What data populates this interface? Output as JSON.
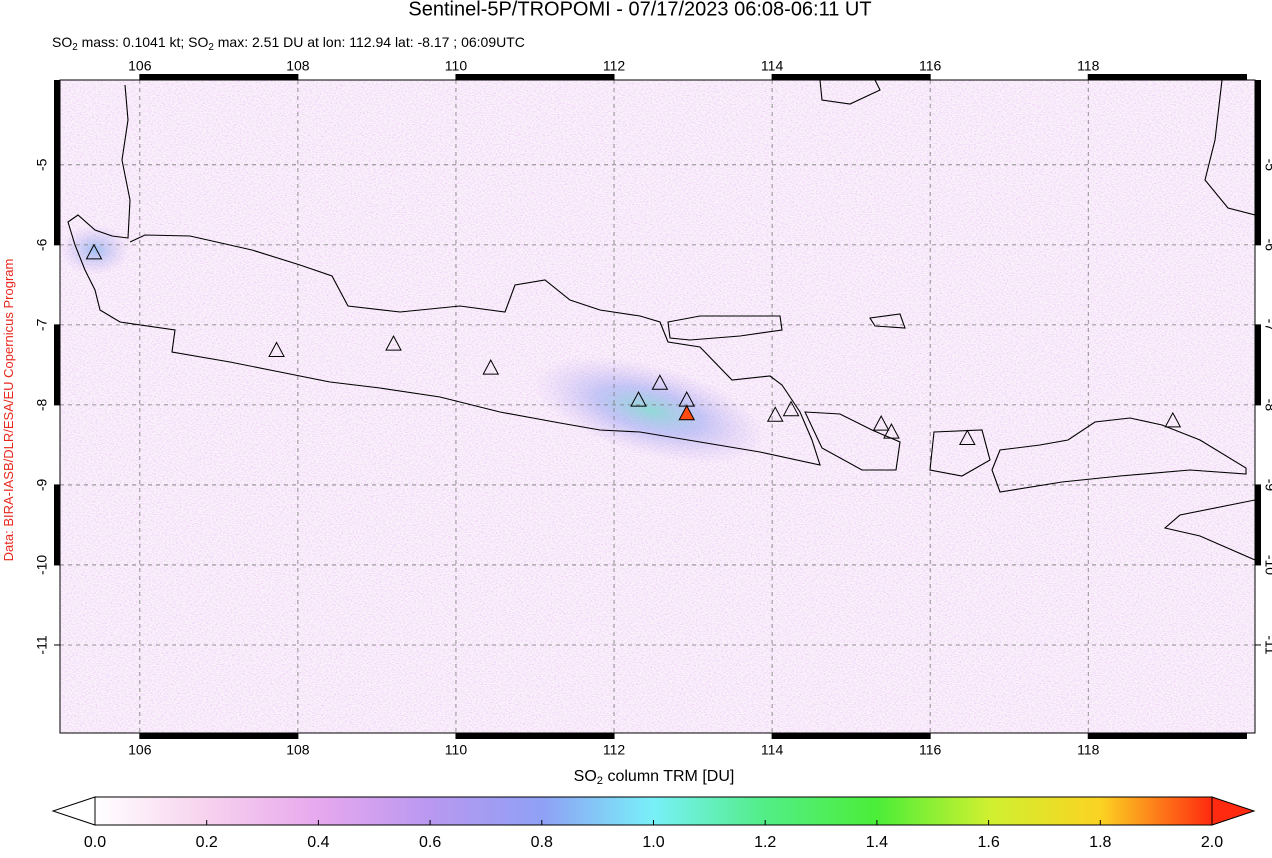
{
  "chart_data": {
    "type": "map",
    "title": "Sentinel-5P/TROPOMI - 07/17/2023 06:08-06:11 UT",
    "subtitle": [
      {
        "text": "SO"
      },
      {
        "subscript": "2"
      },
      {
        "text": " mass: 0.1041 kt; SO"
      },
      {
        "subscript": "2"
      },
      {
        "text": " max: 2.51 DU at lon: 112.94 lat: -8.17 ; 06:09UTC"
      }
    ],
    "credit": "Data: BIRA-IASB/DLR/ESA/EU Copernicus Program",
    "credit_color": "#e8281e",
    "xlim": [
      104.99,
      120.11
    ],
    "ylim": [
      -12.1,
      -3.94
    ],
    "xticks": [
      106,
      108,
      110,
      112,
      114,
      116,
      118
    ],
    "yticks": [
      -5,
      -6,
      -7,
      -8,
      -9,
      -10,
      -11
    ],
    "grid": true,
    "volcanoes": [
      {
        "lon": 105.42,
        "lat": -6.1,
        "color": "none"
      },
      {
        "lon": 107.73,
        "lat": -7.32,
        "color": "none"
      },
      {
        "lon": 109.21,
        "lat": -7.24,
        "color": "none"
      },
      {
        "lon": 110.44,
        "lat": -7.54,
        "color": "none"
      },
      {
        "lon": 112.31,
        "lat": -7.94,
        "color": "none"
      },
      {
        "lon": 112.58,
        "lat": -7.73,
        "color": "none"
      },
      {
        "lon": 112.92,
        "lat": -7.94,
        "color": "none"
      },
      {
        "lon": 112.92,
        "lat": -8.11,
        "color": "#ff4a10"
      },
      {
        "lon": 114.04,
        "lat": -8.13,
        "color": "none"
      },
      {
        "lon": 114.24,
        "lat": -8.06,
        "color": "none"
      },
      {
        "lon": 115.38,
        "lat": -8.24,
        "color": "none"
      },
      {
        "lon": 115.51,
        "lat": -8.34,
        "color": "none"
      },
      {
        "lon": 116.47,
        "lat": -8.42,
        "color": "none"
      },
      {
        "lon": 119.07,
        "lat": -8.2,
        "color": "none"
      }
    ],
    "colorbar": {
      "label": [
        {
          "text": "SO"
        },
        {
          "subscript": "2"
        },
        {
          "text": " column TRM [DU]"
        }
      ],
      "lim": [
        0,
        2
      ],
      "ticks": [
        {
          "value": 0,
          "label": "0.0"
        },
        {
          "value": 0.2,
          "label": "0.2"
        },
        {
          "value": 0.4,
          "label": "0.4"
        },
        {
          "value": 0.6,
          "label": "0.6"
        },
        {
          "value": 0.8,
          "label": "0.8"
        },
        {
          "value": 1,
          "label": "1.0"
        },
        {
          "value": 1.2,
          "label": "1.2"
        },
        {
          "value": 1.4,
          "label": "1.4"
        },
        {
          "value": 1.6,
          "label": "1.6"
        },
        {
          "value": 1.8,
          "label": "1.8"
        },
        {
          "value": 2,
          "label": "2.0"
        }
      ],
      "colors": [
        "#ffffff",
        "#f7d2ee",
        "#e7a8ee",
        "#b998f0",
        "#8fa0f5",
        "#78f0f8",
        "#52ee86",
        "#4bee38",
        "#cff030",
        "#fbd322",
        "#ff2a10"
      ]
    }
  }
}
